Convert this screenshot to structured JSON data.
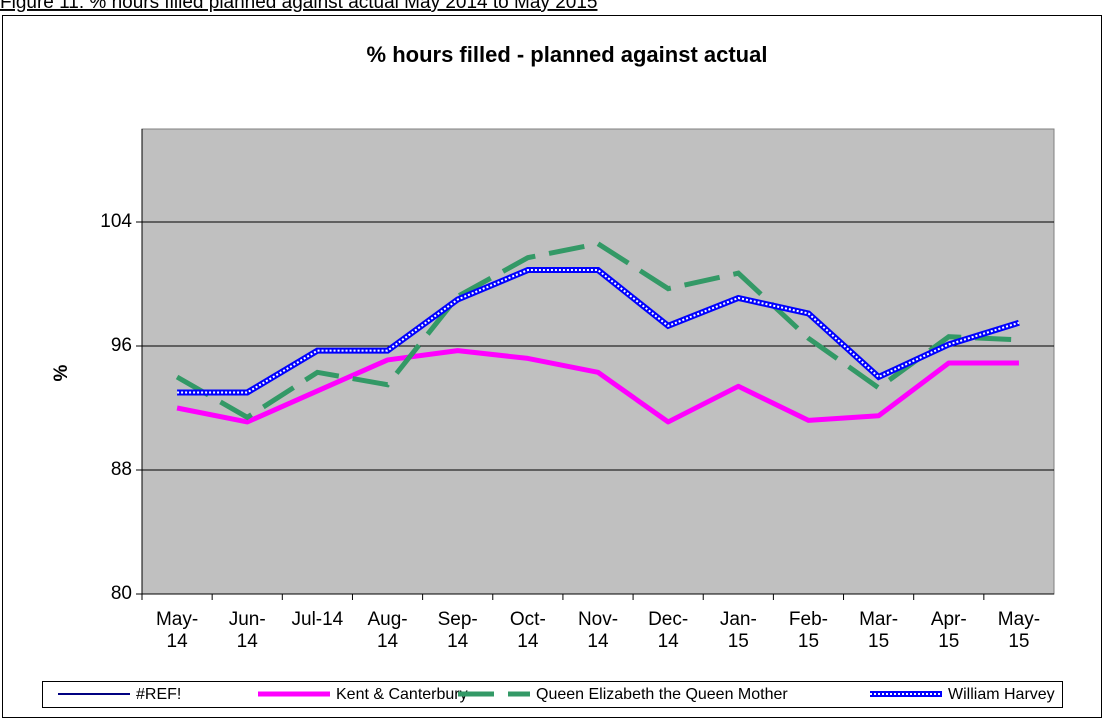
{
  "caption": "Figure 11: % hours filled planned against actual May 2014 to May 2015",
  "chart_data": {
    "type": "line",
    "title": "% hours filled - planned against actual",
    "y_label": "%",
    "categories": [
      "May-14",
      "Jun-14",
      "Jul-14",
      "Aug-14",
      "Sep-14",
      "Oct-14",
      "Nov-14",
      "Dec-14",
      "Jan-15",
      "Feb-15",
      "Mar-15",
      "Apr-15",
      "May-15"
    ],
    "series": [
      {
        "name": "#REF!",
        "color": "#000080",
        "style": "thin",
        "values": [
          93.0,
          93.0,
          95.7,
          95.7,
          99.0,
          100.9,
          100.9,
          97.3,
          99.1,
          98.1,
          94.0,
          96.1,
          97.5
        ]
      },
      {
        "name": "Kent & Canterbury",
        "color": "#ff00ff",
        "style": "solid",
        "values": [
          92.0,
          91.1,
          93.1,
          95.1,
          95.7,
          95.2,
          94.3,
          91.1,
          93.4,
          91.2,
          91.5,
          94.9,
          94.9
        ]
      },
      {
        "name": "Queen Elizabeth the Queen Mother",
        "color": "#339966",
        "style": "dashed",
        "values": [
          94.0,
          91.4,
          94.3,
          93.5,
          99.2,
          101.7,
          102.6,
          99.7,
          100.7,
          96.5,
          93.3,
          96.6,
          96.4
        ]
      },
      {
        "name": "William Harvey",
        "color": "#0000ff",
        "style": "dotted",
        "values": [
          93.0,
          93.0,
          95.7,
          95.7,
          99.0,
          100.9,
          100.9,
          97.3,
          99.1,
          98.1,
          94.0,
          96.1,
          97.5
        ]
      }
    ],
    "ylim": [
      80,
      110
    ],
    "yticks": [
      80,
      88,
      96,
      104
    ],
    "grid": true,
    "plot_background": "#c0c0c0",
    "legend": "bottom"
  }
}
